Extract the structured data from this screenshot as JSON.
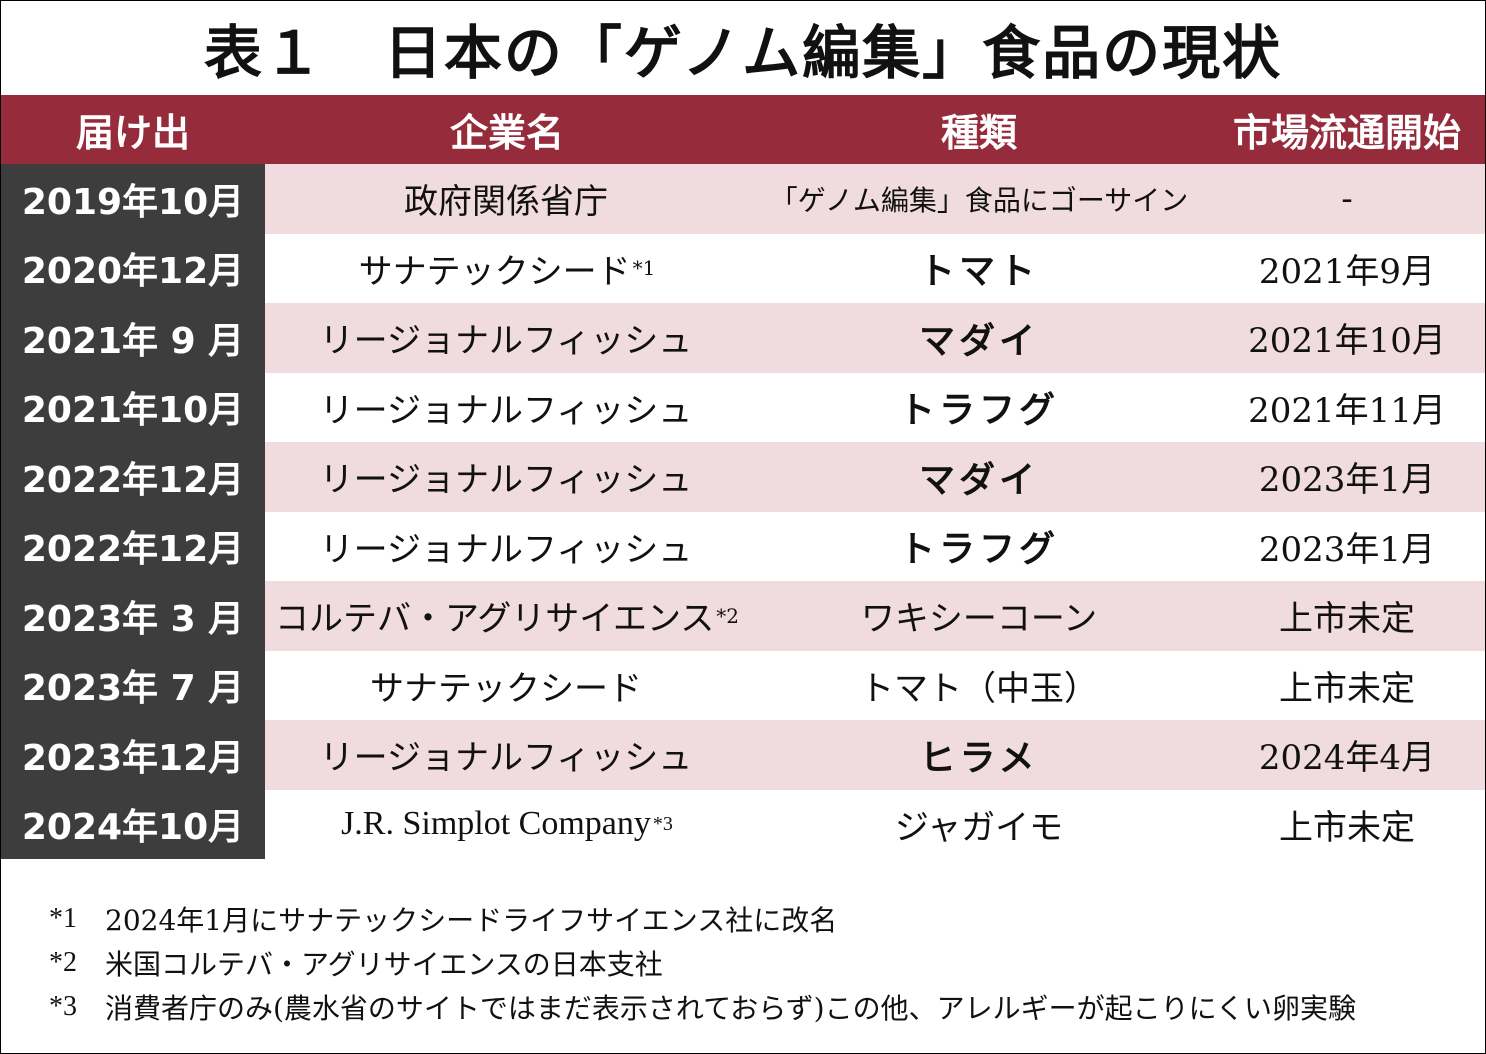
{
  "title": "表１　日本の「ゲノム編集」食品の現状",
  "colors": {
    "header_bg": "#962b3c",
    "date_col_bg": "#3d3d3d",
    "striped_row_bg": "#f0dcdf",
    "plain_row_bg": "#ffffff"
  },
  "table": {
    "headers": [
      "届け出",
      "企業名",
      "種類",
      "市場流通開始"
    ],
    "rows": [
      {
        "date": "2019年10月",
        "company": "政府関係省庁",
        "company_note": "",
        "kind": "「ゲノム編集」食品にゴーサイン",
        "kind_bold": false,
        "market": "-"
      },
      {
        "date": "2020年12月",
        "company": "サナテックシード",
        "company_note": "*1",
        "kind": "トマト",
        "kind_bold": true,
        "market": "2021年9月"
      },
      {
        "date": "2021年 9 月",
        "company": "リージョナルフィッシュ",
        "company_note": "",
        "kind": "マダイ",
        "kind_bold": true,
        "market": "2021年10月"
      },
      {
        "date": "2021年10月",
        "company": "リージョナルフィッシュ",
        "company_note": "",
        "kind": "トラフグ",
        "kind_bold": true,
        "market": "2021年11月"
      },
      {
        "date": "2022年12月",
        "company": "リージョナルフィッシュ",
        "company_note": "",
        "kind": "マダイ",
        "kind_bold": true,
        "market": "2023年1月"
      },
      {
        "date": "2022年12月",
        "company": "リージョナルフィッシュ",
        "company_note": "",
        "kind": "トラフグ",
        "kind_bold": true,
        "market": "2023年1月"
      },
      {
        "date": "2023年 3 月",
        "company": "コルテバ・アグリサイエンス",
        "company_note": "*2",
        "kind": "ワキシーコーン",
        "kind_bold": false,
        "market": "上市未定"
      },
      {
        "date": "2023年 7 月",
        "company": "サナテックシード",
        "company_note": "",
        "kind": "トマト（中玉）",
        "kind_bold": false,
        "market": "上市未定"
      },
      {
        "date": "2023年12月",
        "company": "リージョナルフィッシュ",
        "company_note": "",
        "kind": "ヒラメ",
        "kind_bold": true,
        "market": "2024年4月"
      },
      {
        "date": "2024年10月",
        "company": "J.R. Simplot Company",
        "company_note": "*3",
        "kind": "ジャガイモ",
        "kind_bold": false,
        "market": "上市未定"
      }
    ]
  },
  "footnotes": [
    {
      "mark": "*1",
      "text": "2024年1月にサナテックシードライフサイエンス社に改名"
    },
    {
      "mark": "*2",
      "text": "米国コルテバ・アグリサイエンスの日本支社"
    },
    {
      "mark": "*3",
      "text": "消費者庁のみ(農水省のサイトではまだ表示されておらず)この他、アレルギーが起こりにくい卵実験"
    }
  ]
}
